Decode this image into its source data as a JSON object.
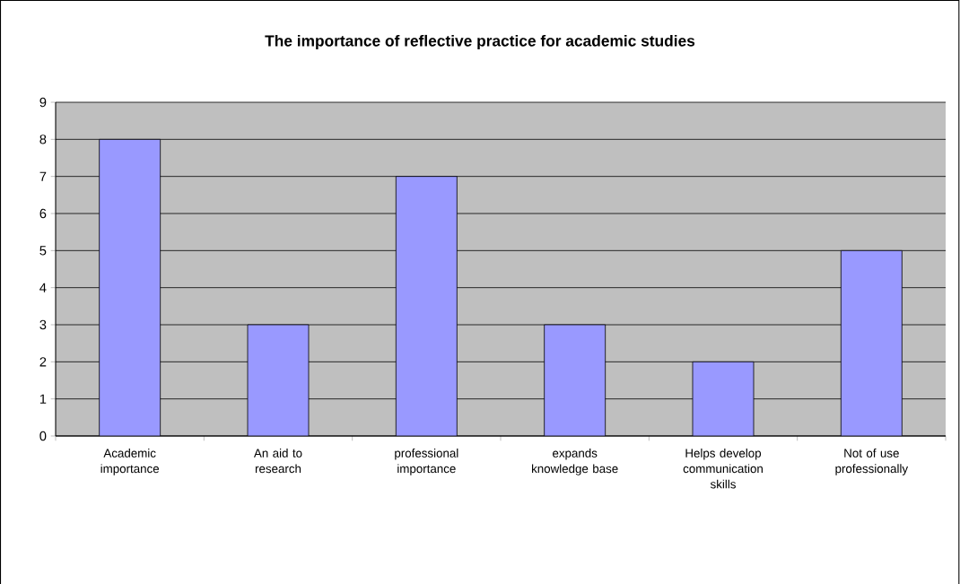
{
  "chart_data": {
    "type": "bar",
    "title": "The importance of reflective practice for academic studies",
    "categories": [
      "Academic importance",
      "An aid to research",
      "professional importance",
      "expands knowledge base",
      "Helps develop communication skills",
      "Not of use professionally"
    ],
    "values": [
      8,
      3,
      7,
      3,
      2,
      5
    ],
    "color": "#9999ff",
    "ylim": [
      0,
      9
    ],
    "yticks": [
      0,
      1,
      2,
      3,
      4,
      5,
      6,
      7,
      8,
      9
    ],
    "grid": "y"
  }
}
